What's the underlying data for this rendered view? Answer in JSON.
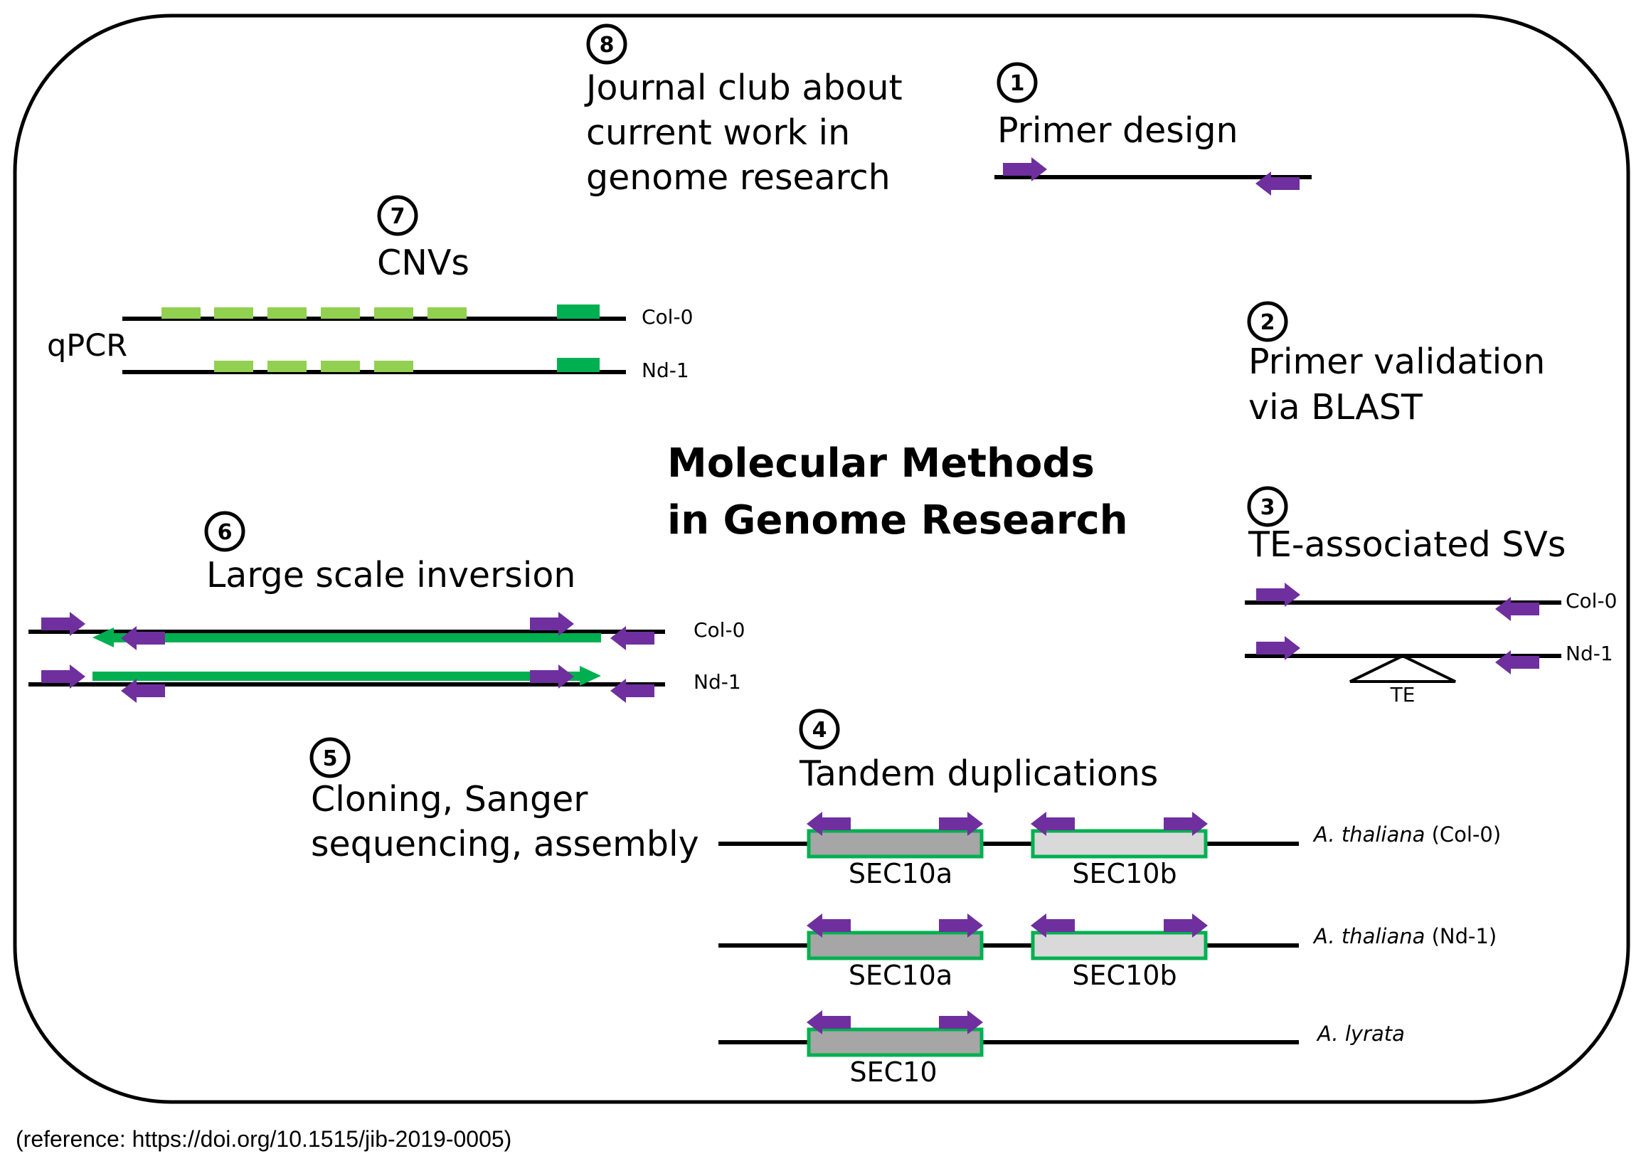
{
  "main_title": [
    "Molecular Methods",
    "in Genome Research"
  ],
  "steps": {
    "s1": {
      "num": "1",
      "title": "Primer design"
    },
    "s2": {
      "num": "2",
      "lines": [
        "Primer validation",
        "via BLAST"
      ]
    },
    "s3": {
      "num": "3",
      "title": "TE-associated SVs",
      "track1": "Col-0",
      "track2": "Nd-1",
      "te_label": "TE"
    },
    "s4": {
      "num": "4",
      "title": "Tandem duplications"
    },
    "s5": {
      "num": "5",
      "lines": [
        "Cloning, Sanger",
        "sequencing, assembly"
      ]
    },
    "s6": {
      "num": "6",
      "title": "Large scale inversion",
      "track1": "Col-0",
      "track2": "Nd-1"
    },
    "s7": {
      "num": "7",
      "title": "CNVs",
      "side_label": "qPCR",
      "track1": "Col-0",
      "track2": "Nd-1"
    },
    "s8": {
      "num": "8",
      "lines": [
        "Journal club about",
        "current work in",
        "genome research"
      ]
    }
  },
  "tandem": {
    "rows": [
      {
        "genus": "A. thaliana",
        "accession": " (Col-0)",
        "gene1": "SEC10a",
        "gene2": "SEC10b"
      },
      {
        "genus": "A. thaliana",
        "accession": " (Nd-1)",
        "gene1": "SEC10a",
        "gene2": "SEC10b"
      },
      {
        "genus": "A. lyrata",
        "accession": "",
        "gene1": "SEC10",
        "gene2": ""
      }
    ]
  },
  "colors": {
    "primer": "#6f2f9f",
    "copy_light_green": "#92d050",
    "copy_dark_green": "#00b050",
    "inversion_green": "#00b050",
    "gene_dark_fill": "#a6a6a6",
    "gene_light_fill": "#d9d9d9",
    "gene_border": "#00b050"
  },
  "reference": "(reference: https://doi.org/10.1515/jib-2019-0005)"
}
